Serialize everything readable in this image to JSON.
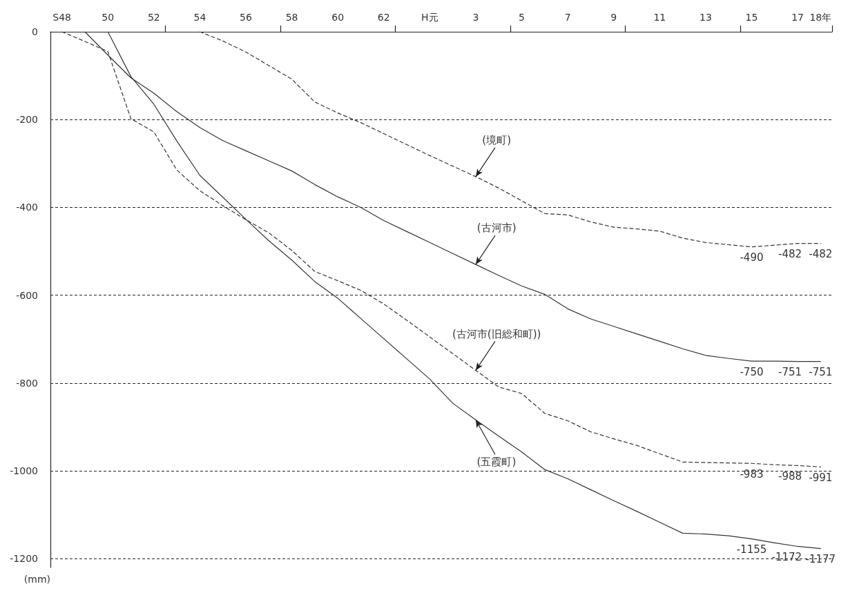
{
  "chart_data": {
    "type": "line",
    "ylabel": "(mm)",
    "marker": "none",
    "grid": "y",
    "categories": [
      "S48",
      null,
      "50",
      null,
      "52",
      null,
      "54",
      null,
      "56",
      null,
      "58",
      null,
      "60",
      null,
      "62",
      null,
      "H元",
      null,
      "3",
      null,
      "5",
      null,
      "7",
      null,
      "9",
      null,
      "11",
      null,
      "13",
      null,
      "15",
      null,
      "17",
      "18年"
    ],
    "ylim": [
      -1220,
      0
    ],
    "yticks": [
      0,
      -200,
      -400,
      -600,
      -800,
      -1000,
      -1200
    ],
    "series": [
      {
        "color": "#333333",
        "line_style": "dashed",
        "values": [
          null,
          null,
          null,
          null,
          null,
          null,
          0,
          -21,
          -46,
          -77,
          -108,
          -160,
          -185,
          -207,
          -232,
          -257,
          -282,
          -306,
          -330,
          -356,
          -385,
          -414,
          -417,
          -433,
          -445,
          -449,
          -454,
          -470,
          -480,
          -485,
          -490,
          -486,
          -482,
          -482
        ],
        "value_labels": [
          null,
          null,
          null,
          null,
          null,
          null,
          null,
          null,
          null,
          null,
          null,
          null,
          null,
          null,
          null,
          null,
          null,
          null,
          null,
          null,
          null,
          null,
          null,
          null,
          null,
          null,
          null,
          null,
          null,
          null,
          "-490",
          null,
          "-482",
          "-482"
        ]
      },
      {
        "color": "#333333",
        "line_style": "solid",
        "values": [
          null,
          0,
          -53,
          -105,
          -140,
          -182,
          -218,
          -248,
          -271,
          -294,
          -317,
          -348,
          -376,
          -400,
          -430,
          -455,
          -480,
          -505,
          -530,
          -555,
          -579,
          -598,
          -631,
          -654,
          -671,
          -688,
          -705,
          -722,
          -737,
          -744,
          -750,
          -750,
          -751,
          -751
        ],
        "value_labels": [
          null,
          null,
          null,
          null,
          null,
          null,
          null,
          null,
          null,
          null,
          null,
          null,
          null,
          null,
          null,
          null,
          null,
          null,
          null,
          null,
          null,
          null,
          null,
          null,
          null,
          null,
          null,
          null,
          null,
          null,
          "-750",
          null,
          "-751",
          "-751"
        ]
      },
      {
        "color": "#333333",
        "line_style": "dashed",
        "values": [
          0,
          -22,
          -45,
          -198,
          -228,
          -315,
          -362,
          -396,
          -428,
          -458,
          -498,
          -546,
          -567,
          -589,
          -620,
          -657,
          -695,
          -733,
          -771,
          -809,
          -824,
          -869,
          -886,
          -911,
          -927,
          -942,
          -961,
          -980,
          -981,
          -982,
          -983,
          -986,
          -988,
          -991
        ],
        "value_labels": [
          null,
          null,
          null,
          null,
          null,
          null,
          null,
          null,
          null,
          null,
          null,
          null,
          null,
          null,
          null,
          null,
          null,
          null,
          null,
          null,
          null,
          null,
          null,
          null,
          null,
          null,
          null,
          null,
          null,
          null,
          "-983",
          null,
          "-988",
          "-991"
        ]
      },
      {
        "color": "#333333",
        "line_style": "solid",
        "values": [
          null,
          null,
          0,
          -102,
          -165,
          -249,
          -327,
          -377,
          -427,
          -476,
          -520,
          -569,
          -607,
          -653,
          -699,
          -745,
          -791,
          -846,
          -884,
          -921,
          -957,
          -997,
          -1018,
          -1043,
          -1068,
          -1092,
          -1117,
          -1142,
          -1144,
          -1148,
          -1155,
          -1164,
          -1172,
          -1177
        ],
        "value_labels": [
          null,
          null,
          null,
          null,
          null,
          null,
          null,
          null,
          null,
          null,
          null,
          null,
          null,
          null,
          null,
          null,
          null,
          null,
          null,
          null,
          null,
          null,
          null,
          null,
          null,
          null,
          null,
          null,
          null,
          null,
          "-1155",
          null,
          "-1172",
          "-1177"
        ]
      }
    ],
    "annotations": [
      {
        "text": "(境町)",
        "x": "3",
        "y": -330
      },
      {
        "text": "(古河市)",
        "x": "3",
        "y": -530
      },
      {
        "text": "(古河市(旧総和町))",
        "x": "3",
        "y": -771
      },
      {
        "text": "(五霞町)",
        "x": "3",
        "y": -884
      }
    ]
  }
}
